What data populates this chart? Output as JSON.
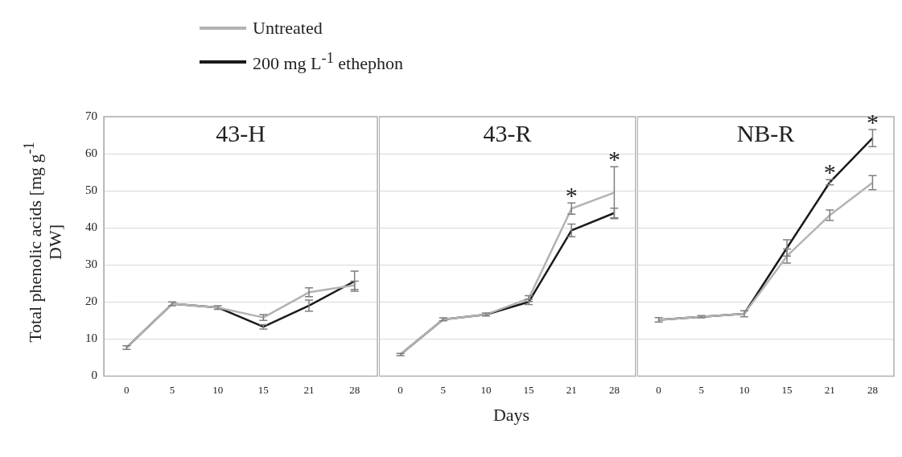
{
  "chart_data": [
    {
      "type": "line",
      "title": "43-H",
      "ylabel": "Total phenolic acids [mg g$^{-1}$ DW]",
      "categories": [
        "0",
        "5",
        "10",
        "15",
        "21",
        "28"
      ],
      "ylim": [
        0,
        70
      ],
      "yticks": [
        0,
        10,
        20,
        30,
        40,
        50,
        60,
        70
      ],
      "grid": "y",
      "legend": "top",
      "line_style": "solid",
      "series": [
        {
          "name": "Untreated",
          "color": "#b3b3b3",
          "values": [
            7.7,
            19.5,
            18.5,
            15.8,
            22.6,
            24.5
          ],
          "errors": [
            0.5,
            0.5,
            0.5,
            0.8,
            1.2,
            1.1
          ]
        },
        {
          "name": "200 mg L$^{-1}$ ethephon",
          "color": "#1a1a1a",
          "values": [
            7.7,
            19.5,
            18.5,
            13.3,
            19,
            25.6
          ],
          "errors": [
            null,
            null,
            null,
            0.6,
            1.5,
            2.7
          ]
        }
      ]
    },
    {
      "type": "line",
      "title": "43-R",
      "xlabel": "Days",
      "categories": [
        "0",
        "5",
        "10",
        "15",
        "21",
        "28"
      ],
      "ylim": [
        0,
        70
      ],
      "yticks": [
        0,
        10,
        20,
        30,
        40,
        50,
        60,
        70
      ],
      "grid": "y",
      "tick_labels": "x",
      "line_style": "solid",
      "annotations": [
        {
          "text": "*",
          "x": "21",
          "y": 46.7
        },
        {
          "text": "*",
          "x": "28",
          "y": 56.5
        }
      ],
      "series": [
        {
          "color": "#b3b3b3",
          "values": [
            5.8,
            15.3,
            16.6,
            20.9,
            45.2,
            49.5
          ],
          "errors": [
            0.3,
            0.4,
            0.4,
            0.8,
            1.5,
            7
          ]
        },
        {
          "color": "#1a1a1a",
          "values": [
            5.8,
            15.3,
            16.6,
            20,
            39.3,
            44
          ],
          "errors": [
            null,
            null,
            null,
            0.7,
            1.7,
            1.3
          ]
        }
      ]
    },
    {
      "type": "line",
      "title": "NB-R",
      "categories": [
        "0",
        "5",
        "10",
        "15",
        "21",
        "28"
      ],
      "ylim": [
        0,
        70
      ],
      "yticks": [
        0,
        10,
        20,
        30,
        40,
        50,
        60,
        70
      ],
      "grid": "y",
      "tick_labels": "x",
      "line_style": "solid",
      "annotations": [
        {
          "text": "*",
          "x": "21",
          "y": 53
        },
        {
          "text": "*",
          "x": "28",
          "y": 66.5
        }
      ],
      "series": [
        {
          "color": "#b3b3b3",
          "values": [
            15.2,
            16,
            16.8,
            32.4,
            43.4,
            52.2
          ],
          "errors": [
            0.6,
            0.3,
            0.8,
            1.9,
            1.4,
            1.9
          ]
        },
        {
          "color": "#1a1a1a",
          "values": [
            15.2,
            16,
            16.8,
            34.6,
            52.3,
            64.2
          ],
          "errors": [
            null,
            null,
            null,
            2.2,
            0.7,
            2.3
          ]
        }
      ]
    }
  ]
}
